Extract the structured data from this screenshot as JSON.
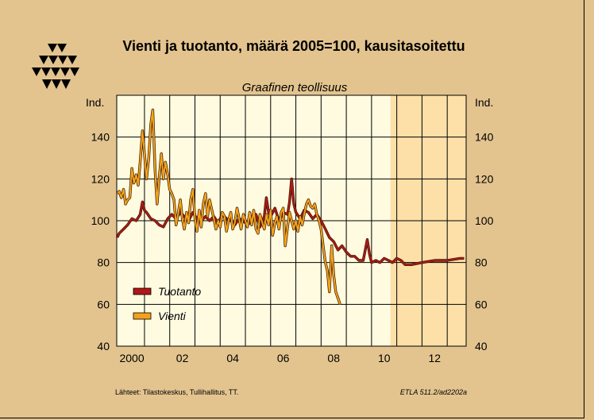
{
  "title": "Vienti ja tuotanto, määrä 2005=100, kausitasoitettu",
  "subtitle": "Graafinen teollisuus",
  "footer": {
    "source": "Lähteet:   Tilastokeskus, Tullihallitus, TT.",
    "code": "ETLA 511.2/ad2202a"
  },
  "colors": {
    "background": "#e3c48f",
    "plot": "#fffbe0",
    "forecast": "#fde0a8",
    "tuotanto": "#b01818",
    "vienti": "#f4a21c"
  },
  "chart_data": {
    "type": "line",
    "title": "Vienti ja tuotanto, määrä 2005=100, kausitasoitettu",
    "subtitle": "Graafinen teollisuus",
    "ylabel_left": "Ind.",
    "ylabel_right": "Ind.",
    "xlim": [
      1999.9,
      2013.75
    ],
    "ylim": [
      40,
      160
    ],
    "x_ticks": [
      {
        "x": 2000,
        "label": "2000"
      },
      {
        "x": 2002,
        "label": "02"
      },
      {
        "x": 2004,
        "label": "04"
      },
      {
        "x": 2006,
        "label": "06"
      },
      {
        "x": 2008,
        "label": "08"
      },
      {
        "x": 2010,
        "label": "10"
      },
      {
        "x": 2012,
        "label": "12"
      }
    ],
    "y_ticks": [
      40,
      60,
      80,
      100,
      120,
      140
    ],
    "forecast_start": 2010.75,
    "grid": true,
    "legend_position": "bottom-left",
    "series": [
      {
        "name": "Tuotanto",
        "color": "#b01818",
        "points": [
          [
            1999.92,
            92
          ],
          [
            2000.0,
            94
          ],
          [
            2000.17,
            96
          ],
          [
            2000.33,
            98
          ],
          [
            2000.5,
            101
          ],
          [
            2000.67,
            100
          ],
          [
            2000.83,
            103
          ],
          [
            2000.92,
            109
          ],
          [
            2001.0,
            105
          ],
          [
            2001.08,
            104
          ],
          [
            2001.25,
            101
          ],
          [
            2001.42,
            100
          ],
          [
            2001.58,
            98
          ],
          [
            2001.75,
            97
          ],
          [
            2001.92,
            101
          ],
          [
            2002.08,
            103
          ],
          [
            2002.25,
            101
          ],
          [
            2002.42,
            104
          ],
          [
            2002.58,
            102
          ],
          [
            2002.75,
            100
          ],
          [
            2002.92,
            104
          ],
          [
            2003.08,
            101
          ],
          [
            2003.25,
            100
          ],
          [
            2003.42,
            102
          ],
          [
            2003.58,
            100
          ],
          [
            2003.75,
            102
          ],
          [
            2003.92,
            99
          ],
          [
            2004.08,
            103
          ],
          [
            2004.25,
            101
          ],
          [
            2004.42,
            100
          ],
          [
            2004.58,
            98
          ],
          [
            2004.75,
            101
          ],
          [
            2004.92,
            100
          ],
          [
            2005.08,
            98
          ],
          [
            2005.25,
            100
          ],
          [
            2005.42,
            103
          ],
          [
            2005.58,
            97
          ],
          [
            2005.75,
            102
          ],
          [
            2005.83,
            111
          ],
          [
            2005.92,
            104
          ],
          [
            2006.0,
            102
          ],
          [
            2006.17,
            106
          ],
          [
            2006.33,
            100
          ],
          [
            2006.5,
            104
          ],
          [
            2006.67,
            103
          ],
          [
            2006.75,
            109
          ],
          [
            2006.83,
            120
          ],
          [
            2006.92,
            108
          ],
          [
            2007.0,
            104
          ],
          [
            2007.17,
            101
          ],
          [
            2007.33,
            105
          ],
          [
            2007.5,
            104
          ],
          [
            2007.67,
            101
          ],
          [
            2007.83,
            103
          ],
          [
            2008.0,
            100
          ],
          [
            2008.17,
            96
          ],
          [
            2008.33,
            92
          ],
          [
            2008.5,
            90
          ],
          [
            2008.67,
            86
          ],
          [
            2008.83,
            88
          ],
          [
            2009.0,
            85
          ],
          [
            2009.17,
            83
          ],
          [
            2009.33,
            83
          ],
          [
            2009.5,
            81
          ],
          [
            2009.67,
            81
          ],
          [
            2009.83,
            91
          ],
          [
            2009.92,
            84
          ],
          [
            2010.0,
            80
          ],
          [
            2010.17,
            81
          ],
          [
            2010.33,
            80
          ],
          [
            2010.5,
            82
          ],
          [
            2010.67,
            81
          ],
          [
            2010.83,
            80
          ],
          [
            2011.0,
            82
          ],
          [
            2011.17,
            81
          ],
          [
            2011.33,
            79
          ],
          [
            2011.58,
            79
          ],
          [
            2012.0,
            80
          ],
          [
            2012.5,
            81
          ],
          [
            2013.0,
            81
          ],
          [
            2013.5,
            82
          ],
          [
            2013.67,
            82
          ]
        ]
      },
      {
        "name": "Vienti",
        "color": "#f4a21c",
        "points": [
          [
            1999.92,
            113
          ],
          [
            2000.0,
            114
          ],
          [
            2000.08,
            111
          ],
          [
            2000.17,
            115
          ],
          [
            2000.25,
            108
          ],
          [
            2000.33,
            110
          ],
          [
            2000.42,
            111
          ],
          [
            2000.5,
            125
          ],
          [
            2000.58,
            118
          ],
          [
            2000.67,
            122
          ],
          [
            2000.75,
            117
          ],
          [
            2000.83,
            128
          ],
          [
            2000.92,
            143
          ],
          [
            2001.0,
            132
          ],
          [
            2001.08,
            120
          ],
          [
            2001.17,
            130
          ],
          [
            2001.25,
            146
          ],
          [
            2001.33,
            153
          ],
          [
            2001.42,
            124
          ],
          [
            2001.5,
            108
          ],
          [
            2001.58,
            120
          ],
          [
            2001.67,
            132
          ],
          [
            2001.75,
            120
          ],
          [
            2001.83,
            128
          ],
          [
            2001.92,
            122
          ],
          [
            2002.0,
            115
          ],
          [
            2002.08,
            113
          ],
          [
            2002.17,
            110
          ],
          [
            2002.25,
            98
          ],
          [
            2002.33,
            103
          ],
          [
            2002.42,
            110
          ],
          [
            2002.5,
            101
          ],
          [
            2002.58,
            96
          ],
          [
            2002.67,
            104
          ],
          [
            2002.75,
            99
          ],
          [
            2002.83,
            110
          ],
          [
            2002.92,
            115
          ],
          [
            2003.0,
            101
          ],
          [
            2003.08,
            95
          ],
          [
            2003.17,
            105
          ],
          [
            2003.25,
            97
          ],
          [
            2003.33,
            108
          ],
          [
            2003.42,
            113
          ],
          [
            2003.5,
            102
          ],
          [
            2003.58,
            110
          ],
          [
            2003.67,
            105
          ],
          [
            2003.75,
            101
          ],
          [
            2003.83,
            96
          ],
          [
            2003.92,
            100
          ],
          [
            2004.0,
            97
          ],
          [
            2004.08,
            104
          ],
          [
            2004.17,
            102
          ],
          [
            2004.25,
            95
          ],
          [
            2004.33,
            100
          ],
          [
            2004.42,
            104
          ],
          [
            2004.5,
            96
          ],
          [
            2004.58,
            99
          ],
          [
            2004.67,
            106
          ],
          [
            2004.75,
            101
          ],
          [
            2004.83,
            96
          ],
          [
            2004.92,
            103
          ],
          [
            2005.0,
            100
          ],
          [
            2005.08,
            97
          ],
          [
            2005.17,
            104
          ],
          [
            2005.25,
            98
          ],
          [
            2005.33,
            105
          ],
          [
            2005.42,
            96
          ],
          [
            2005.5,
            94
          ],
          [
            2005.58,
            103
          ],
          [
            2005.67,
            99
          ],
          [
            2005.75,
            96
          ],
          [
            2005.83,
            103
          ],
          [
            2005.92,
            98
          ],
          [
            2006.0,
            105
          ],
          [
            2006.08,
            93
          ],
          [
            2006.17,
            99
          ],
          [
            2006.25,
            102
          ],
          [
            2006.33,
            96
          ],
          [
            2006.42,
            104
          ],
          [
            2006.5,
            106
          ],
          [
            2006.58,
            88
          ],
          [
            2006.67,
            97
          ],
          [
            2006.75,
            104
          ],
          [
            2006.83,
            100
          ],
          [
            2006.92,
            96
          ],
          [
            2007.0,
            100
          ],
          [
            2007.08,
            95
          ],
          [
            2007.17,
            102
          ],
          [
            2007.25,
            98
          ],
          [
            2007.33,
            103
          ],
          [
            2007.42,
            108
          ],
          [
            2007.5,
            110
          ],
          [
            2007.58,
            107
          ],
          [
            2007.67,
            106
          ],
          [
            2007.75,
            108
          ],
          [
            2007.83,
            103
          ],
          [
            2007.92,
            100
          ],
          [
            2008.0,
            96
          ],
          [
            2008.08,
            88
          ],
          [
            2008.17,
            80
          ],
          [
            2008.25,
            76
          ],
          [
            2008.33,
            66
          ],
          [
            2008.42,
            88
          ],
          [
            2008.5,
            74
          ],
          [
            2008.58,
            66
          ],
          [
            2008.67,
            63
          ],
          [
            2008.75,
            60
          ]
        ]
      }
    ]
  }
}
